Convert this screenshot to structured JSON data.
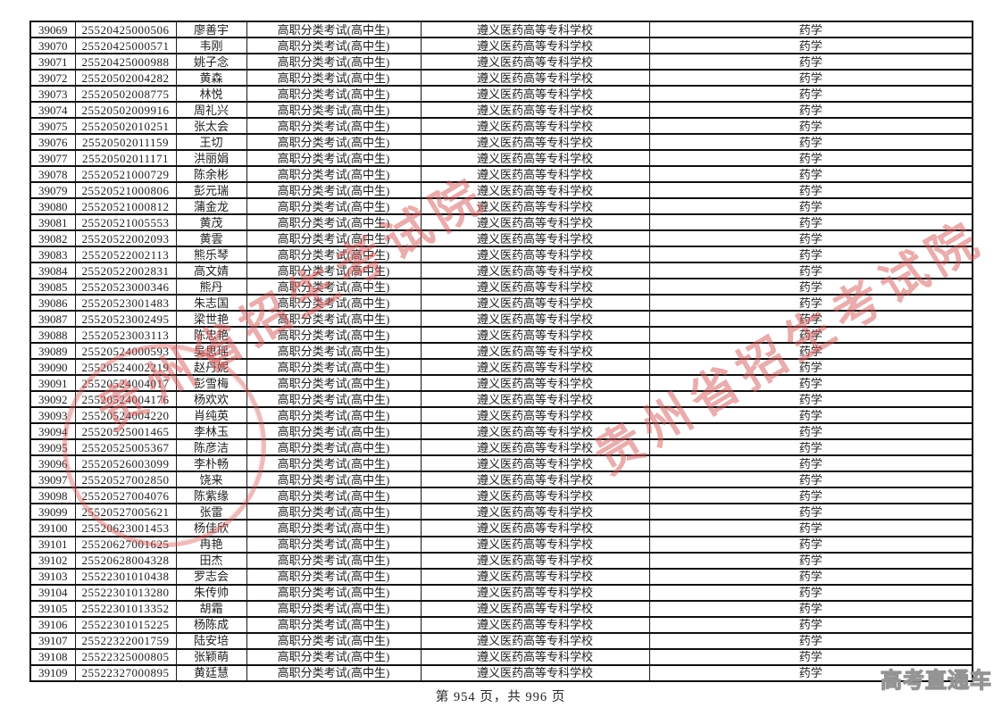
{
  "page": {
    "footer": "第 954 页，共 996 页",
    "watermark_text": "贵州省招生考试院",
    "corner_logo": "高考直通车",
    "colors": {
      "watermark_red": "#d55a5a",
      "logo_gray": "#949494",
      "table_border": "#0f0f0f",
      "text": "#1e1e1e",
      "background": "#ffffff"
    }
  },
  "table": {
    "columns": [
      "seq",
      "id",
      "name",
      "type",
      "school",
      "major"
    ],
    "rows": [
      [
        "39069",
        "25520425000506",
        "廖善宇",
        "高职分类考试(高中生)",
        "遵义医药高等专科学校",
        "药学"
      ],
      [
        "39070",
        "25520425000571",
        "韦刚",
        "高职分类考试(高中生)",
        "遵义医药高等专科学校",
        "药学"
      ],
      [
        "39071",
        "25520425000988",
        "姚子念",
        "高职分类考试(高中生)",
        "遵义医药高等专科学校",
        "药学"
      ],
      [
        "39072",
        "25520502004282",
        "黄森",
        "高职分类考试(高中生)",
        "遵义医药高等专科学校",
        "药学"
      ],
      [
        "39073",
        "25520502008775",
        "林悦",
        "高职分类考试(高中生)",
        "遵义医药高等专科学校",
        "药学"
      ],
      [
        "39074",
        "25520502009916",
        "周礼兴",
        "高职分类考试(高中生)",
        "遵义医药高等专科学校",
        "药学"
      ],
      [
        "39075",
        "25520502010251",
        "张太会",
        "高职分类考试(高中生)",
        "遵义医药高等专科学校",
        "药学"
      ],
      [
        "39076",
        "25520502011159",
        "王切",
        "高职分类考试(高中生)",
        "遵义医药高等专科学校",
        "药学"
      ],
      [
        "39077",
        "25520502011171",
        "洪丽娟",
        "高职分类考试(高中生)",
        "遵义医药高等专科学校",
        "药学"
      ],
      [
        "39078",
        "25520521000729",
        "陈余彬",
        "高职分类考试(高中生)",
        "遵义医药高等专科学校",
        "药学"
      ],
      [
        "39079",
        "25520521000806",
        "彭元瑞",
        "高职分类考试(高中生)",
        "遵义医药高等专科学校",
        "药学"
      ],
      [
        "39080",
        "25520521000812",
        "蒲金龙",
        "高职分类考试(高中生)",
        "遵义医药高等专科学校",
        "药学"
      ],
      [
        "39081",
        "25520521005553",
        "黄茂",
        "高职分类考试(高中生)",
        "遵义医药高等专科学校",
        "药学"
      ],
      [
        "39082",
        "25520522002093",
        "黄雲",
        "高职分类考试(高中生)",
        "遵义医药高等专科学校",
        "药学"
      ],
      [
        "39083",
        "25520522002113",
        "熊乐琴",
        "高职分类考试(高中生)",
        "遵义医药高等专科学校",
        "药学"
      ],
      [
        "39084",
        "25520522002831",
        "高文婧",
        "高职分类考试(高中生)",
        "遵义医药高等专科学校",
        "药学"
      ],
      [
        "39085",
        "25520523000346",
        "熊丹",
        "高职分类考试(高中生)",
        "遵义医药高等专科学校",
        "药学"
      ],
      [
        "39086",
        "25520523001483",
        "朱志国",
        "高职分类考试(高中生)",
        "遵义医药高等专科学校",
        "药学"
      ],
      [
        "39087",
        "25520523002495",
        "梁世艳",
        "高职分类考试(高中生)",
        "遵义医药高等专科学校",
        "药学"
      ],
      [
        "39088",
        "25520523003113",
        "陈忠艳",
        "高职分类考试(高中生)",
        "遵义医药高等专科学校",
        "药学"
      ],
      [
        "39089",
        "25520524000593",
        "吴思瑶",
        "高职分类考试(高中生)",
        "遵义医药高等专科学校",
        "药学"
      ],
      [
        "39090",
        "25520524002219",
        "赵丹妮",
        "高职分类考试(高中生)",
        "遵义医药高等专科学校",
        "药学"
      ],
      [
        "39091",
        "25520524004017",
        "彭雪梅",
        "高职分类考试(高中生)",
        "遵义医药高等专科学校",
        "药学"
      ],
      [
        "39092",
        "25520524004176",
        "杨欢欢",
        "高职分类考试(高中生)",
        "遵义医药高等专科学校",
        "药学"
      ],
      [
        "39093",
        "25520524004220",
        "肖纯英",
        "高职分类考试(高中生)",
        "遵义医药高等专科学校",
        "药学"
      ],
      [
        "39094",
        "25520525001465",
        "李林玉",
        "高职分类考试(高中生)",
        "遵义医药高等专科学校",
        "药学"
      ],
      [
        "39095",
        "25520525005367",
        "陈彦洁",
        "高职分类考试(高中生)",
        "遵义医药高等专科学校",
        "药学"
      ],
      [
        "39096",
        "25520526003099",
        "李朴畅",
        "高职分类考试(高中生)",
        "遵义医药高等专科学校",
        "药学"
      ],
      [
        "39097",
        "25520527002850",
        "饶来",
        "高职分类考试(高中生)",
        "遵义医药高等专科学校",
        "药学"
      ],
      [
        "39098",
        "25520527004076",
        "陈紫缘",
        "高职分类考试(高中生)",
        "遵义医药高等专科学校",
        "药学"
      ],
      [
        "39099",
        "25520527005621",
        "张雷",
        "高职分类考试(高中生)",
        "遵义医药高等专科学校",
        "药学"
      ],
      [
        "39100",
        "25520623001453",
        "杨佳欣",
        "高职分类考试(高中生)",
        "遵义医药高等专科学校",
        "药学"
      ],
      [
        "39101",
        "25520627001625",
        "冉艳",
        "高职分类考试(高中生)",
        "遵义医药高等专科学校",
        "药学"
      ],
      [
        "39102",
        "25520628004328",
        "田杰",
        "高职分类考试(高中生)",
        "遵义医药高等专科学校",
        "药学"
      ],
      [
        "39103",
        "25522301010438",
        "罗志会",
        "高职分类考试(高中生)",
        "遵义医药高等专科学校",
        "药学"
      ],
      [
        "39104",
        "25522301013280",
        "朱传帅",
        "高职分类考试(高中生)",
        "遵义医药高等专科学校",
        "药学"
      ],
      [
        "39105",
        "25522301013352",
        "胡霜",
        "高职分类考试(高中生)",
        "遵义医药高等专科学校",
        "药学"
      ],
      [
        "39106",
        "25522301015225",
        "杨陈成",
        "高职分类考试(高中生)",
        "遵义医药高等专科学校",
        "药学"
      ],
      [
        "39107",
        "25522322001759",
        "陆安培",
        "高职分类考试(高中生)",
        "遵义医药高等专科学校",
        "药学"
      ],
      [
        "39108",
        "25522325000805",
        "张颖萌",
        "高职分类考试(高中生)",
        "遵义医药高等专科学校",
        "药学"
      ],
      [
        "39109",
        "25522327000895",
        "黄廷慧",
        "高职分类考试(高中生)",
        "遵义医药高等专科学校",
        "药学"
      ]
    ]
  }
}
